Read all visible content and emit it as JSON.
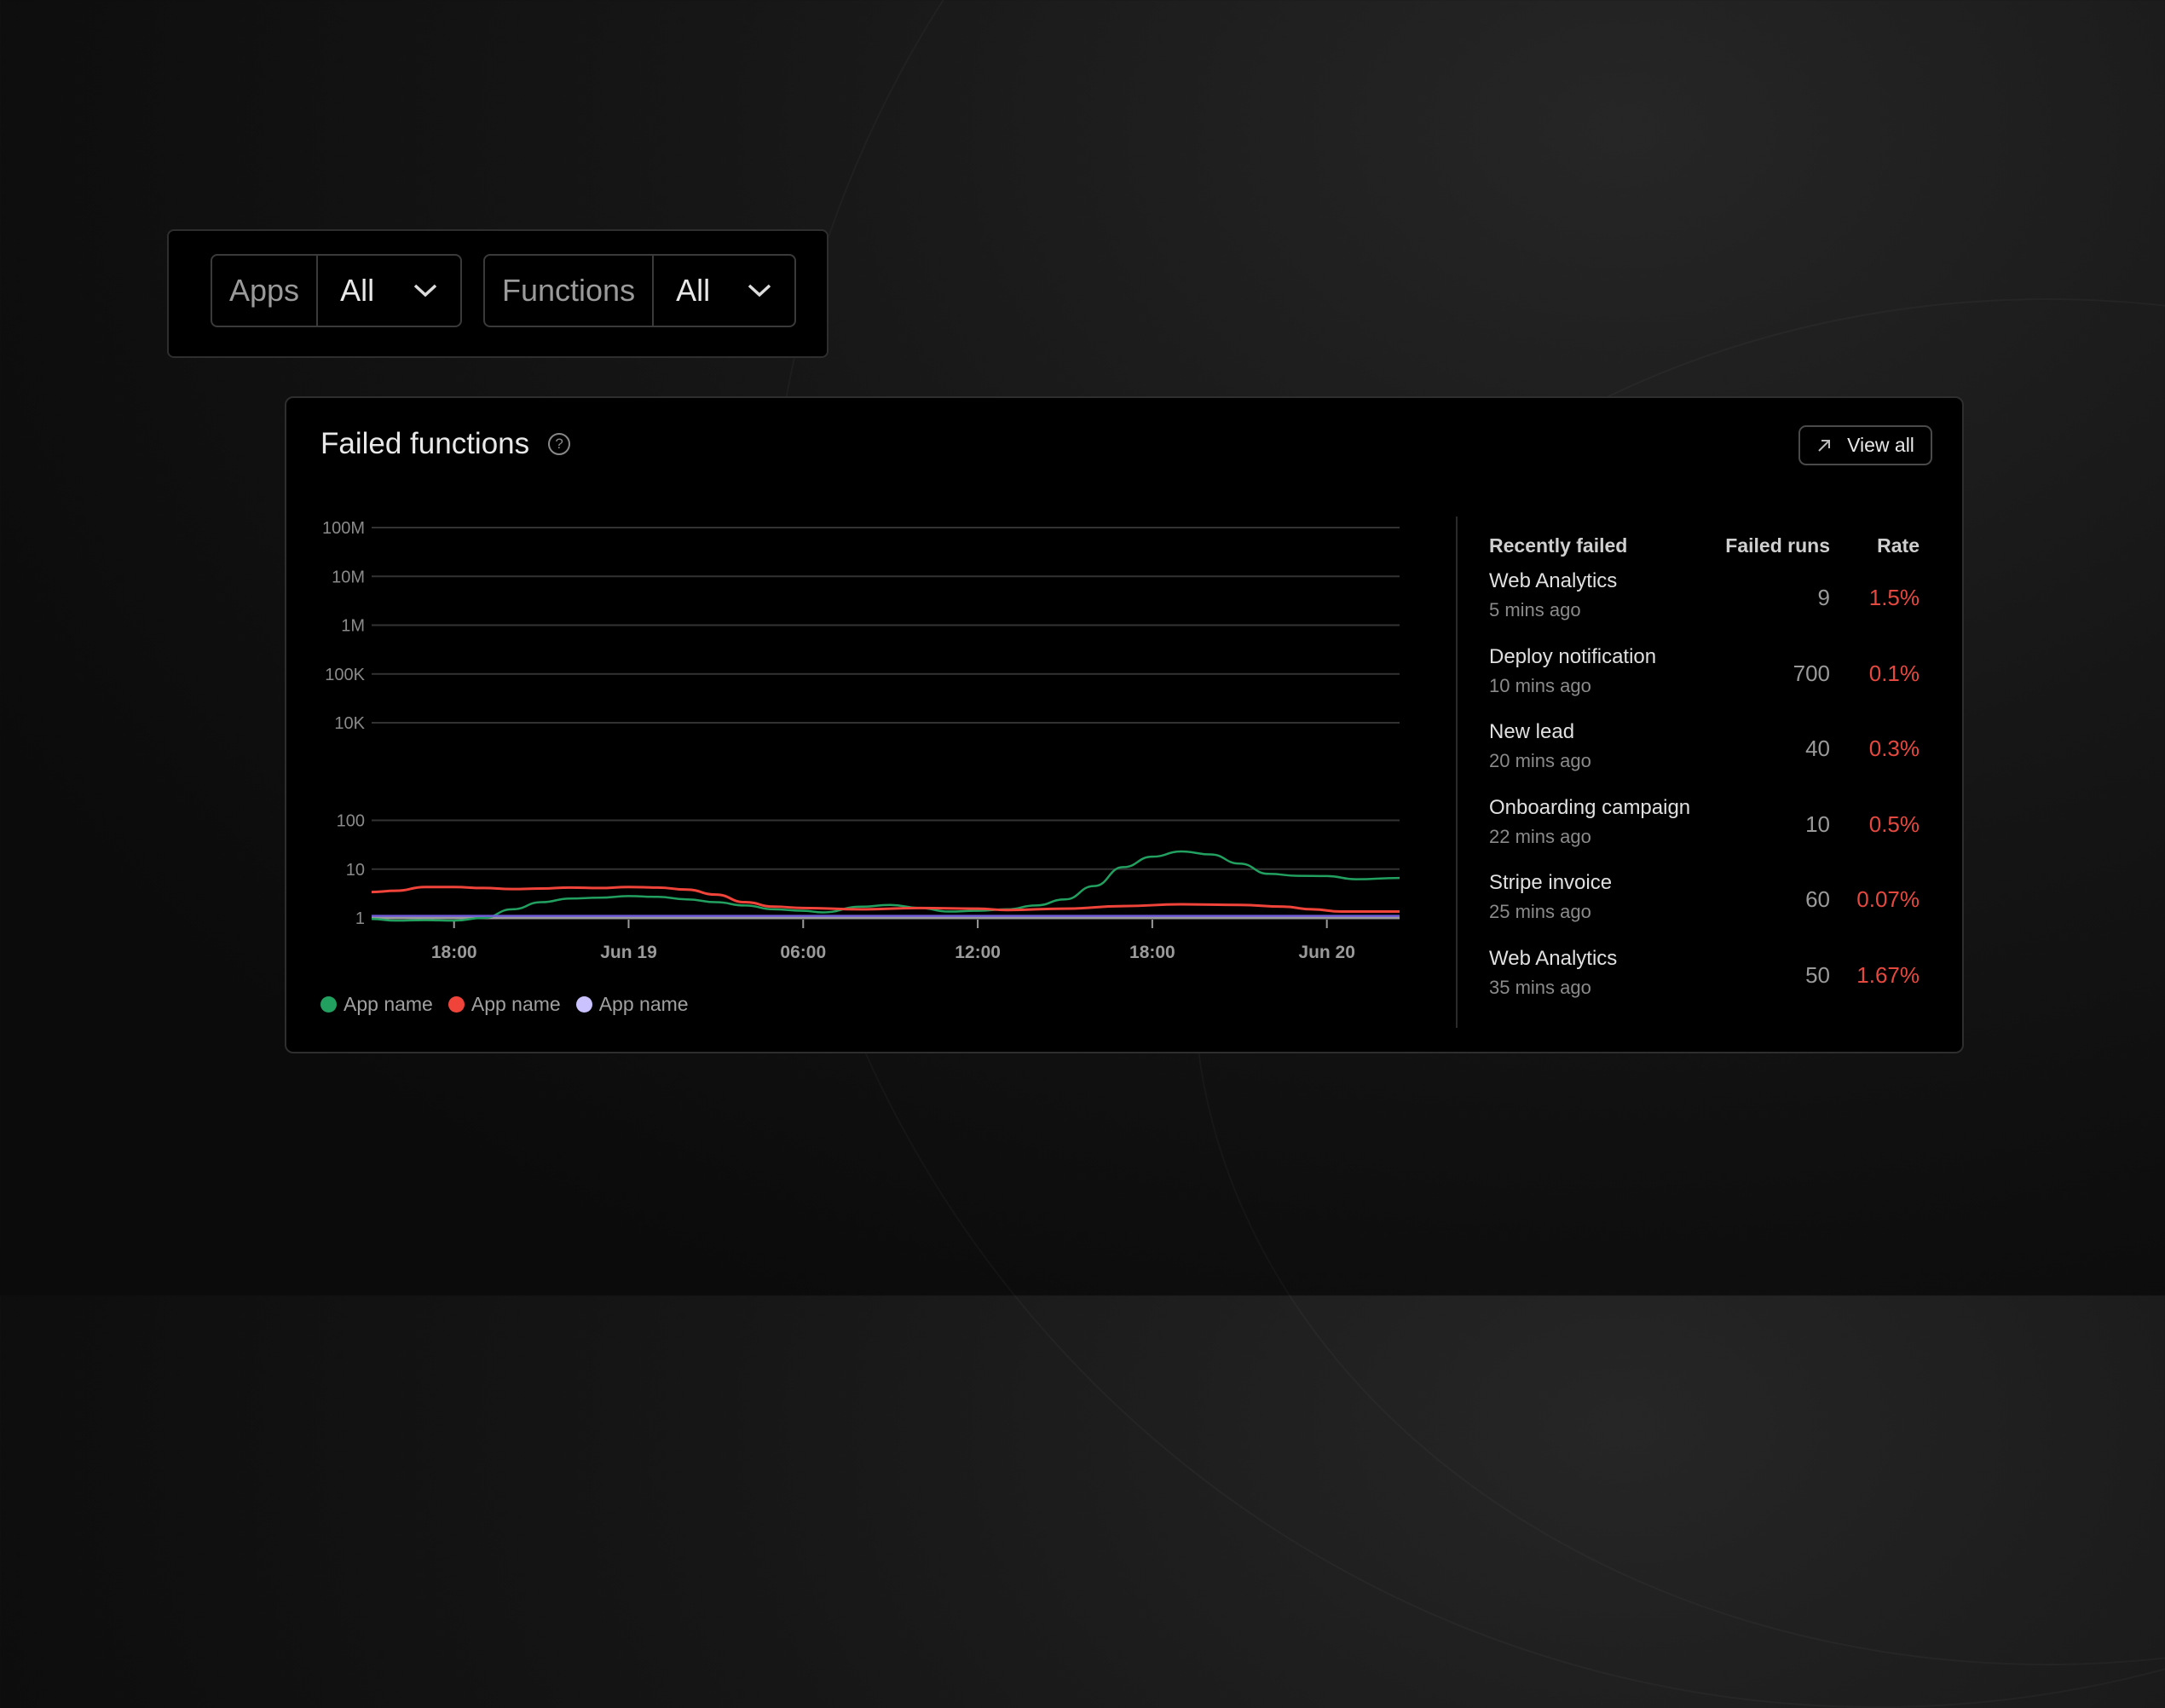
{
  "filters": {
    "apps": {
      "label": "Apps",
      "value": "All"
    },
    "functions": {
      "label": "Functions",
      "value": "All"
    }
  },
  "card": {
    "title": "Failed functions",
    "help_icon": "question-circle-icon",
    "view_all_label": "View all",
    "view_all_icon": "arrow-up-right-icon"
  },
  "table": {
    "headers": {
      "name": "Recently failed",
      "runs": "Failed runs",
      "rate": "Rate"
    },
    "rows": [
      {
        "name": "Web Analytics",
        "time": "5 mins ago",
        "runs": "9",
        "rate": "1.5%"
      },
      {
        "name": "Deploy notification",
        "time": "10 mins ago",
        "runs": "700",
        "rate": "0.1%"
      },
      {
        "name": "New lead",
        "time": "20 mins ago",
        "runs": "40",
        "rate": "0.3%"
      },
      {
        "name": "Onboarding campaign",
        "time": "22 mins ago",
        "runs": "10",
        "rate": "0.5%"
      },
      {
        "name": "Stripe invoice",
        "time": "25 mins ago",
        "runs": "60",
        "rate": "0.07%"
      },
      {
        "name": "Web Analytics",
        "time": "35 mins ago",
        "runs": "50",
        "rate": "1.67%"
      }
    ],
    "rate_color": "#e5483f"
  },
  "chart_data": {
    "type": "line",
    "y_scale": "log",
    "ylim": [
      1,
      100000000
    ],
    "y_ticks": [
      "100M",
      "10M",
      "1M",
      "100K",
      "10K",
      "100",
      "10",
      "1"
    ],
    "y_tick_values": [
      100000000,
      10000000,
      1000000,
      100000,
      10000,
      100,
      10,
      1
    ],
    "x_range": [
      "Jun 18 15:10",
      "Jun 20 02:30"
    ],
    "x_ticks": [
      {
        "label": "18:00",
        "at": "Jun 18 18:00"
      },
      {
        "label": "Jun 19",
        "at": "Jun 19 00:00"
      },
      {
        "label": "06:00",
        "at": "Jun 19 06:00"
      },
      {
        "label": "12:00",
        "at": "Jun 19 12:00"
      },
      {
        "label": "18:00",
        "at": "Jun 19 18:00"
      },
      {
        "label": "Jun 20",
        "at": "Jun 20 00:00"
      }
    ],
    "grid": true,
    "legend_position": "bottom-left",
    "series": [
      {
        "name": "App name",
        "color": "#22a060",
        "points": [
          [
            "Jun 18 15:10",
            0.95
          ],
          [
            "Jun 18 16:00",
            0.88
          ],
          [
            "Jun 18 17:00",
            0.9
          ],
          [
            "Jun 18 18:00",
            0.88
          ],
          [
            "Jun 18 19:00",
            1.0
          ],
          [
            "Jun 18 20:00",
            1.5
          ],
          [
            "Jun 18 21:00",
            2.1
          ],
          [
            "Jun 18 22:00",
            2.5
          ],
          [
            "Jun 18 23:00",
            2.6
          ],
          [
            "Jun 19 00:00",
            2.8
          ],
          [
            "Jun 19 01:00",
            2.7
          ],
          [
            "Jun 19 02:00",
            2.4
          ],
          [
            "Jun 19 03:00",
            2.1
          ],
          [
            "Jun 19 04:00",
            1.8
          ],
          [
            "Jun 19 05:00",
            1.5
          ],
          [
            "Jun 19 06:00",
            1.4
          ],
          [
            "Jun 19 06:40",
            1.3
          ],
          [
            "Jun 19 08:00",
            1.7
          ],
          [
            "Jun 19 09:00",
            1.85
          ],
          [
            "Jun 19 10:00",
            1.6
          ],
          [
            "Jun 19 11:00",
            1.35
          ],
          [
            "Jun 19 12:00",
            1.4
          ],
          [
            "Jun 19 13:00",
            1.5
          ],
          [
            "Jun 19 14:00",
            1.8
          ],
          [
            "Jun 19 15:00",
            2.4
          ],
          [
            "Jun 19 16:00",
            4.5
          ],
          [
            "Jun 19 17:00",
            11
          ],
          [
            "Jun 19 18:00",
            18
          ],
          [
            "Jun 19 19:00",
            23
          ],
          [
            "Jun 19 20:00",
            20
          ],
          [
            "Jun 19 21:00",
            13
          ],
          [
            "Jun 19 22:00",
            8
          ],
          [
            "Jun 19 23:00",
            7.3
          ],
          [
            "Jun 20 00:00",
            7.2
          ],
          [
            "Jun 20 01:00",
            6.2
          ],
          [
            "Jun 20 02:30",
            6.6
          ]
        ]
      },
      {
        "name": "App name",
        "color": "#f0443a",
        "points": [
          [
            "Jun 18 15:10",
            3.4
          ],
          [
            "Jun 18 16:00",
            3.6
          ],
          [
            "Jun 18 17:00",
            4.3
          ],
          [
            "Jun 18 18:00",
            4.3
          ],
          [
            "Jun 18 19:00",
            4.1
          ],
          [
            "Jun 18 20:00",
            3.9
          ],
          [
            "Jun 18 21:00",
            4.0
          ],
          [
            "Jun 18 22:00",
            4.2
          ],
          [
            "Jun 18 23:00",
            4.1
          ],
          [
            "Jun 19 00:00",
            4.3
          ],
          [
            "Jun 19 01:00",
            4.2
          ],
          [
            "Jun 19 02:00",
            3.8
          ],
          [
            "Jun 19 03:00",
            3.0
          ],
          [
            "Jun 19 04:00",
            2.1
          ],
          [
            "Jun 19 05:00",
            1.7
          ],
          [
            "Jun 19 06:00",
            1.6
          ],
          [
            "Jun 19 08:00",
            1.5
          ],
          [
            "Jun 19 10:00",
            1.6
          ],
          [
            "Jun 19 12:00",
            1.55
          ],
          [
            "Jun 19 13:00",
            1.45
          ],
          [
            "Jun 19 15:00",
            1.55
          ],
          [
            "Jun 19 17:00",
            1.75
          ],
          [
            "Jun 19 19:00",
            1.9
          ],
          [
            "Jun 19 21:00",
            1.85
          ],
          [
            "Jun 19 22:30",
            1.7
          ],
          [
            "Jun 19 23:30",
            1.5
          ],
          [
            "Jun 20 00:30",
            1.35
          ],
          [
            "Jun 20 02:30",
            1.35
          ]
        ]
      },
      {
        "name": "App name",
        "color": "#c9c2ff",
        "line_color": "#6e5ad6",
        "points": [
          [
            "Jun 18 15:10",
            1.1
          ],
          [
            "Jun 20 02:30",
            1.1
          ]
        ]
      }
    ]
  }
}
